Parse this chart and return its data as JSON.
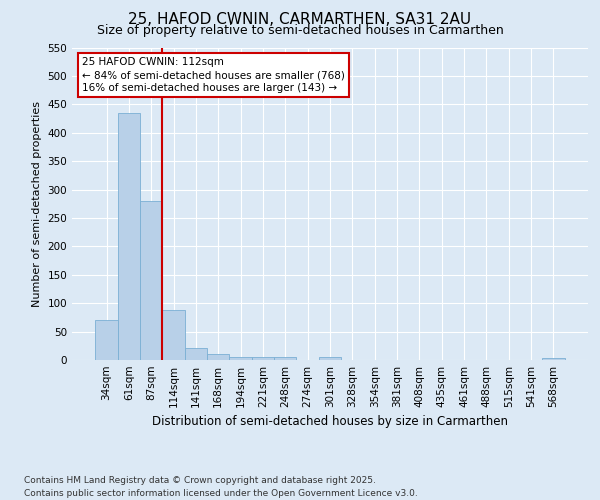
{
  "title1": "25, HAFOD CWNIN, CARMARTHEN, SA31 2AU",
  "title2": "Size of property relative to semi-detached houses in Carmarthen",
  "xlabel": "Distribution of semi-detached houses by size in Carmarthen",
  "ylabel": "Number of semi-detached properties",
  "categories": [
    "34sqm",
    "61sqm",
    "87sqm",
    "114sqm",
    "141sqm",
    "168sqm",
    "194sqm",
    "221sqm",
    "248sqm",
    "274sqm",
    "301sqm",
    "328sqm",
    "354sqm",
    "381sqm",
    "408sqm",
    "435sqm",
    "461sqm",
    "488sqm",
    "515sqm",
    "541sqm",
    "568sqm"
  ],
  "values": [
    70,
    435,
    280,
    88,
    22,
    10,
    5,
    5,
    5,
    0,
    5,
    0,
    0,
    0,
    0,
    0,
    0,
    0,
    0,
    0,
    4
  ],
  "bar_color": "#b8d0e8",
  "bar_edge_color": "#7bafd4",
  "vline_color": "#cc0000",
  "annotation_text": "25 HAFOD CWNIN: 112sqm\n← 84% of semi-detached houses are smaller (768)\n16% of semi-detached houses are larger (143) →",
  "annotation_box_color": "#ffffff",
  "annotation_box_edge": "#cc0000",
  "ylim": [
    0,
    550
  ],
  "yticks": [
    0,
    50,
    100,
    150,
    200,
    250,
    300,
    350,
    400,
    450,
    500,
    550
  ],
  "footnote": "Contains HM Land Registry data © Crown copyright and database right 2025.\nContains public sector information licensed under the Open Government Licence v3.0.",
  "background_color": "#dce9f5",
  "title1_fontsize": 11,
  "title2_fontsize": 9,
  "xlabel_fontsize": 8.5,
  "ylabel_fontsize": 8,
  "footnote_fontsize": 6.5,
  "tick_fontsize": 7.5,
  "annot_fontsize": 7.5
}
